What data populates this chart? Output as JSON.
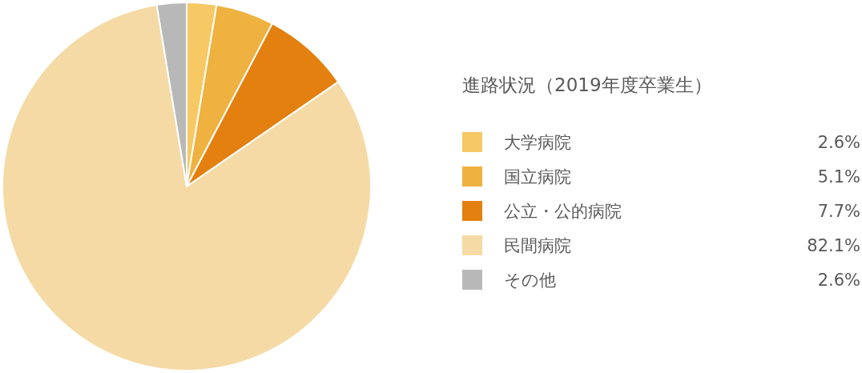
{
  "chart_data": {
    "type": "pie",
    "legend_title": "進路状況（2019年度卒業生）",
    "categories": [
      "大学病院",
      "国立病院",
      "公立・公的病院",
      "民間病院",
      "その他"
    ],
    "values": [
      2.6,
      5.1,
      7.7,
      82.1,
      2.6
    ],
    "colors": [
      "#f6c964",
      "#efb13f",
      "#e3800f",
      "#f5daa5",
      "#b8b8b8"
    ],
    "value_labels": [
      "2.6%",
      "5.1%",
      "7.7%",
      "82.1%",
      "2.6%"
    ],
    "legend": "right"
  }
}
